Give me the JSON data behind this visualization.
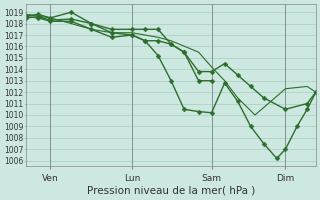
{
  "title": "Pression niveau de la mer( hPa )",
  "bg_color": "#cce8e0",
  "grid_color": "#aaccc0",
  "line_color": "#2d6e2d",
  "ylim": [
    1005.5,
    1019.7
  ],
  "yticks": [
    1006,
    1007,
    1008,
    1009,
    1010,
    1011,
    1012,
    1013,
    1014,
    1015,
    1016,
    1017,
    1018,
    1019
  ],
  "ylabel_fontsize": 5.5,
  "xlabel_fontsize": 7.5,
  "xtick_labels": [
    "Ven",
    "Lun",
    "Sam",
    "Dim"
  ],
  "xtick_pos": [
    0.083,
    0.365,
    0.64,
    0.895
  ],
  "xlim": [
    0.0,
    1.0
  ],
  "lines": [
    {
      "x": [
        0.0,
        0.042,
        0.083,
        0.155,
        0.225,
        0.295,
        0.365,
        0.41,
        0.455,
        0.5,
        0.545,
        0.595,
        0.64,
        0.685,
        0.73,
        0.775,
        0.82,
        0.865,
        0.895,
        0.935,
        0.97,
        1.0
      ],
      "y": [
        1018.7,
        1018.8,
        1018.5,
        1019.0,
        1018.0,
        1017.2,
        1017.0,
        1016.5,
        1015.2,
        1013.0,
        1010.5,
        1010.3,
        1010.2,
        1012.8,
        1011.2,
        1009.0,
        1007.5,
        1006.2,
        1007.0,
        1009.0,
        1010.5,
        1012.0
      ],
      "marker": "D",
      "markersize": 2.5,
      "lw": 1.0
    },
    {
      "x": [
        0.0,
        0.042,
        0.083,
        0.155,
        0.225,
        0.295,
        0.365,
        0.41,
        0.455,
        0.5,
        0.545,
        0.595,
        0.64,
        0.685,
        0.73,
        0.775,
        0.82,
        0.895,
        0.97,
        1.0
      ],
      "y": [
        1018.5,
        1018.6,
        1018.3,
        1018.4,
        1018.0,
        1017.5,
        1017.5,
        1017.5,
        1017.5,
        1016.2,
        1015.5,
        1013.8,
        1013.8,
        1014.5,
        1013.5,
        1012.5,
        1011.5,
        1010.5,
        1011.0,
        1012.0
      ],
      "marker": "D",
      "markersize": 2.5,
      "lw": 1.0
    },
    {
      "x": [
        0.0,
        0.042,
        0.083,
        0.155,
        0.225,
        0.295,
        0.365,
        0.41,
        0.455,
        0.5,
        0.545,
        0.595,
        0.64
      ],
      "y": [
        1018.6,
        1018.5,
        1018.2,
        1018.2,
        1017.5,
        1016.8,
        1017.0,
        1016.5,
        1016.5,
        1016.2,
        1015.5,
        1013.0,
        1013.0
      ],
      "marker": "D",
      "markersize": 2.5,
      "lw": 1.0
    },
    {
      "x": [
        0.0,
        0.083,
        0.155,
        0.225,
        0.295,
        0.365,
        0.41,
        0.455,
        0.5,
        0.595,
        0.64,
        0.685,
        0.73,
        0.79,
        0.895,
        0.97,
        1.0
      ],
      "y": [
        1018.8,
        1018.5,
        1018.0,
        1017.5,
        1017.2,
        1017.2,
        1017.0,
        1016.8,
        1016.5,
        1015.5,
        1014.2,
        1013.0,
        1011.5,
        1010.0,
        1012.3,
        1012.5,
        1012.0
      ],
      "marker": null,
      "markersize": 0,
      "lw": 0.8
    }
  ]
}
